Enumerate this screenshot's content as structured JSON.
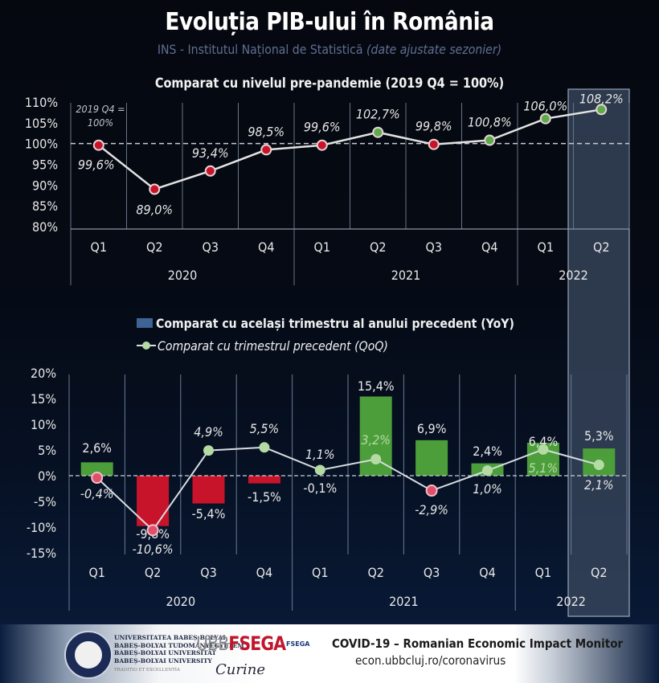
{
  "header": {
    "title": "Evoluția PIB-ului în România",
    "subtitle_source": "INS - Institutul Național de Statistică",
    "subtitle_note": "(date ajustate sezonier)"
  },
  "colors": {
    "positive_bar": "#4c9e3a",
    "negative_bar": "#c8142a",
    "positive_marker": "#5faa4a",
    "negative_marker": "#c8142a",
    "qoq_positive_marker": "#b5dba5",
    "qoq_negative_marker": "#e0506a",
    "legend_yoy": "#3d6494",
    "highlight_box": "#3b4a60"
  },
  "chart_data": [
    {
      "type": "line",
      "title": "Comparat cu nivelul pre-pandemie (2019 Q4 = 100%)",
      "annotation": "2019 Q4 = 100%",
      "categories": [
        "Q1",
        "Q2",
        "Q3",
        "Q4",
        "Q1",
        "Q2",
        "Q3",
        "Q4",
        "Q1",
        "Q2"
      ],
      "years": [
        {
          "label": "2020",
          "span": 4
        },
        {
          "label": "2021",
          "span": 4
        },
        {
          "label": "2022",
          "span": 2
        }
      ],
      "values": [
        99.6,
        89.0,
        93.4,
        98.5,
        99.6,
        102.7,
        99.8,
        100.8,
        106.0,
        108.2
      ],
      "labels": [
        "99,6%",
        "89,0%",
        "93,4%",
        "98,5%",
        "99,6%",
        "102,7%",
        "99,8%",
        "100,8%",
        "106,0%",
        "108,2%"
      ],
      "label_pos": [
        "below",
        "below",
        "above",
        "above",
        "above",
        "above",
        "above",
        "above",
        "above",
        "above"
      ],
      "ylim": [
        80,
        110
      ],
      "yticks": [
        110,
        105,
        100,
        95,
        90,
        85,
        80
      ],
      "ytick_labels": [
        "110%",
        "105%",
        "100%",
        "95%",
        "90%",
        "85%",
        "80%"
      ],
      "reference_line": 100,
      "highlight_index": 9
    },
    {
      "type": "bar",
      "legend": [
        {
          "name": "Comparat cu același trimestru al anului precedent (YoY)",
          "kind": "bar"
        },
        {
          "name": "Comparat cu trimestrul precedent (QoQ)",
          "kind": "line"
        }
      ],
      "categories": [
        "Q1",
        "Q2",
        "Q3",
        "Q4",
        "Q1",
        "Q2",
        "Q3",
        "Q4",
        "Q1",
        "Q2"
      ],
      "years": [
        {
          "label": "2020",
          "span": 4
        },
        {
          "label": "2021",
          "span": 4
        },
        {
          "label": "2022",
          "span": 2
        }
      ],
      "series": [
        {
          "name": "YoY",
          "kind": "bar",
          "values": [
            2.6,
            -9.8,
            -5.4,
            -1.5,
            -0.1,
            15.4,
            6.9,
            2.4,
            6.4,
            5.3
          ],
          "labels": [
            "2,6%",
            "-9,8%",
            "-5,4%",
            "-1,5%",
            "-0,1%",
            "15,4%",
            "6,9%",
            "2,4%",
            "6,4%",
            "5,3%"
          ]
        },
        {
          "name": "QoQ",
          "kind": "line",
          "values": [
            -0.4,
            -10.6,
            4.9,
            5.5,
            1.1,
            3.2,
            -2.9,
            1.0,
            5.1,
            2.1
          ],
          "labels": [
            "-0,4%",
            "-10,6%",
            "4,9%",
            "5,5%",
            "1,1%",
            "3,2%",
            "-2,9%",
            "1,0%",
            "5,1%",
            "2,1%"
          ]
        }
      ],
      "ylim": [
        -15,
        20
      ],
      "yticks": [
        20,
        15,
        10,
        5,
        0,
        -5,
        -10,
        -15
      ],
      "ytick_labels": [
        "20%",
        "15%",
        "10%",
        "5%",
        "0%",
        "-5%",
        "-10%",
        "-15%"
      ],
      "reference_line": 0,
      "highlight_index": 9
    }
  ],
  "footer": {
    "university_lines": [
      "UNIVERSITATEA BABEȘ-BOLYAI",
      "BABEȘ-BOLYAI TUDOMÁNYEGYETEM",
      "BABEȘ-BOLYAI UNIVERSITÄT",
      "BABEȘ-BOLYAI UNIVERSITY"
    ],
    "university_motto": "TRADITIO ET EXCELLENTIA",
    "faculty_logo_prefix": "UBB",
    "faculty_logo_main": "FSEGA",
    "faculty_small": "FSEGA",
    "signature": "Curine",
    "monitor_title": "COVID-19 – Romanian Economic Impact Monitor",
    "monitor_url": "econ.ubbcluj.ro/coronavirus"
  }
}
